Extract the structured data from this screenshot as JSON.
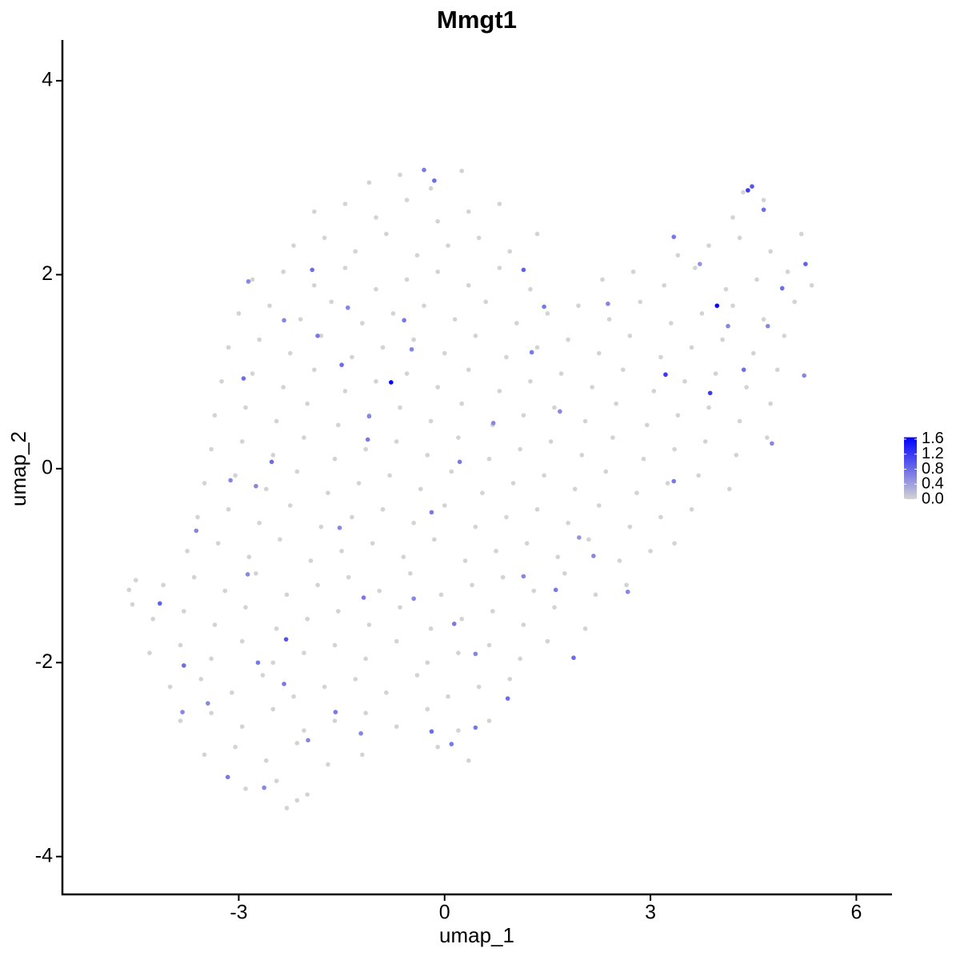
{
  "chart_data": {
    "type": "scatter",
    "title": "Mmgt1",
    "x_label": "umap_1",
    "y_label": "umap_2",
    "xlim": [
      -5.57,
      6.52
    ],
    "ylim": [
      -4.39,
      4.42
    ],
    "xticks": [
      -3,
      0,
      3,
      6
    ],
    "yticks": [
      -4,
      -2,
      0,
      2,
      4
    ],
    "grid": false,
    "color_low": "#d3d3d3",
    "color_high": "#0000ff",
    "clim": [
      0,
      1.65
    ],
    "cticks": [
      {
        "value": 0,
        "label": "0.0"
      },
      0.4,
      0.8,
      1.2,
      1.6
    ],
    "x": [
      -1.1,
      -0.65,
      -0.2,
      0.25,
      4.35,
      -1.9,
      -1.45,
      -1.0,
      -0.55,
      -0.1,
      0.35,
      0.8,
      4.2,
      4.65,
      -2.2,
      -1.75,
      -1.3,
      -0.85,
      -0.4,
      0.05,
      0.5,
      0.95,
      1.35,
      3.4,
      3.85,
      4.3,
      4.75,
      5.2,
      -2.8,
      -2.35,
      -1.9,
      -1.45,
      -1.0,
      -0.55,
      -0.1,
      0.35,
      0.8,
      1.25,
      2.3,
      2.75,
      3.2,
      3.65,
      4.1,
      4.55,
      5.0,
      5.35,
      -3.0,
      -2.55,
      -2.1,
      -1.65,
      -1.2,
      -0.75,
      -0.3,
      0.15,
      0.6,
      1.05,
      1.5,
      1.95,
      2.4,
      2.85,
      3.3,
      3.75,
      4.2,
      4.65,
      5.1,
      -3.15,
      -2.7,
      -2.25,
      -1.8,
      -1.35,
      -0.9,
      -0.45,
      0,
      0.45,
      0.9,
      1.35,
      1.8,
      2.25,
      2.7,
      3.15,
      3.6,
      4.05,
      4.5,
      4.95,
      -3.25,
      -2.8,
      -2.35,
      -1.9,
      -1.45,
      -1.0,
      -0.55,
      -0.1,
      0.35,
      0.8,
      1.25,
      1.7,
      2.15,
      2.6,
      3.05,
      3.5,
      3.95,
      4.4,
      4.85,
      -3.35,
      -2.9,
      -2.45,
      -2.0,
      -1.55,
      -1.1,
      -0.65,
      -0.2,
      0.25,
      0.7,
      1.15,
      1.6,
      2.05,
      2.5,
      2.95,
      3.4,
      3.85,
      4.3,
      4.75,
      -3.4,
      -2.95,
      -2.5,
      -2.05,
      -1.6,
      -1.15,
      -0.7,
      -0.25,
      0.2,
      0.65,
      1.1,
      1.55,
      2.0,
      2.45,
      2.9,
      3.35,
      3.8,
      4.25,
      4.7,
      -3.5,
      -3.05,
      -2.6,
      -2.15,
      -1.7,
      -1.25,
      -0.8,
      -0.35,
      0.1,
      0.55,
      1.0,
      1.45,
      1.9,
      2.35,
      2.8,
      3.25,
      3.7,
      4.15,
      -3.6,
      -3.15,
      -2.7,
      -2.25,
      -1.8,
      -1.35,
      -0.9,
      -0.45,
      0,
      0.45,
      0.9,
      1.35,
      1.8,
      2.25,
      2.7,
      3.15,
      3.6,
      -3.75,
      -3.3,
      -2.85,
      -2.4,
      -1.95,
      -1.5,
      -1.05,
      -0.6,
      -0.15,
      0.3,
      0.75,
      1.2,
      1.65,
      2.1,
      2.55,
      3.0,
      3.35,
      -4.1,
      -3.65,
      -3.2,
      -2.75,
      -2.3,
      -1.85,
      -1.4,
      -0.95,
      -0.5,
      -0.05,
      0.4,
      0.85,
      1.3,
      1.75,
      2.2,
      2.65,
      -4.25,
      -3.8,
      -3.35,
      -2.9,
      -2.45,
      -2.0,
      -1.55,
      -1.1,
      -0.65,
      -0.2,
      0.25,
      0.7,
      1.15,
      1.6,
      2.05,
      -4.3,
      -3.85,
      -3.4,
      -2.95,
      -2.5,
      -2.05,
      -1.6,
      -1.15,
      -0.7,
      -0.25,
      0.2,
      0.65,
      1.1,
      1.5,
      -4.0,
      -3.55,
      -3.1,
      -2.65,
      -2.2,
      -1.75,
      -1.3,
      -0.85,
      -0.4,
      0.05,
      0.5,
      0.95,
      -3.85,
      -3.4,
      -2.95,
      -2.5,
      -2.05,
      -1.6,
      -1.15,
      -0.7,
      -0.25,
      0.2,
      0.65,
      -3.5,
      -3.05,
      -2.6,
      -2.15,
      -1.7,
      -1.2,
      -0.1,
      0.35,
      -2.9,
      -2.45,
      -2.0,
      -2.3,
      -2.15,
      -4.6,
      -4.55,
      -4.5,
      1.96,
      3.72,
      4.13,
      4.71,
      1.15,
      0.45,
      0.14,
      -1.53,
      -3.12,
      -2.75,
      -2.86,
      -2.34,
      -1.85,
      -1.1,
      -0.48,
      -0.59,
      -1.41,
      -1.5,
      -3.82,
      -3.45,
      -2.72,
      -2.34,
      -1.99,
      -1.22,
      -1.59,
      -1.18,
      -0.45,
      -0.19,
      0.71,
      1.68,
      1.27,
      1.45,
      2.38,
      3.34,
      4.65,
      4.92,
      5.26,
      5.24,
      4.77,
      3.34,
      2.67,
      2.17,
      1.62,
      1.88,
      0.92,
      0.45,
      0.1,
      -0.19,
      -2.63,
      -3.16,
      -3.8,
      -2.87,
      -3.62,
      -2.52,
      0.22,
      -1.12,
      -2.93,
      -1.93,
      -0.15,
      -0.3,
      4.36,
      1.15,
      -4.15,
      -2.31,
      4.48,
      4.42,
      3.22,
      3.87,
      3.97,
      -0.78
    ],
    "y": [
      2.95,
      3.03,
      2.89,
      3.07,
      2.85,
      2.65,
      2.73,
      2.59,
      2.77,
      2.55,
      2.65,
      2.73,
      2.59,
      2.77,
      2.3,
      2.38,
      2.24,
      2.42,
      2.2,
      2.3,
      2.38,
      2.24,
      2.42,
      2.2,
      2.3,
      2.38,
      2.24,
      2.42,
      1.95,
      2.03,
      1.89,
      2.07,
      1.85,
      1.95,
      2.03,
      1.89,
      2.07,
      1.85,
      1.95,
      2.03,
      1.89,
      2.07,
      1.85,
      1.95,
      2.03,
      1.89,
      1.6,
      1.68,
      1.54,
      1.72,
      1.5,
      1.6,
      1.68,
      1.54,
      1.72,
      1.5,
      1.6,
      1.68,
      1.54,
      1.72,
      1.5,
      1.6,
      1.68,
      1.54,
      1.72,
      1.25,
      1.33,
      1.19,
      1.37,
      1.15,
      1.25,
      1.33,
      1.19,
      1.37,
      1.15,
      1.25,
      1.33,
      1.19,
      1.37,
      1.15,
      1.25,
      1.33,
      1.19,
      1.37,
      0.9,
      0.98,
      0.84,
      1.02,
      0.8,
      0.9,
      0.98,
      0.84,
      1.02,
      0.8,
      0.9,
      0.98,
      0.84,
      1.02,
      0.8,
      0.9,
      0.98,
      0.84,
      1.02,
      0.55,
      0.63,
      0.49,
      0.67,
      0.45,
      0.55,
      0.63,
      0.49,
      0.67,
      0.45,
      0.55,
      0.63,
      0.49,
      0.67,
      0.45,
      0.55,
      0.63,
      0.49,
      0.67,
      0.2,
      0.28,
      0.14,
      0.32,
      0.1,
      0.2,
      0.28,
      0.14,
      0.32,
      0.1,
      0.2,
      0.28,
      0.14,
      0.32,
      0.1,
      0.2,
      0.28,
      0.14,
      0.32,
      -0.15,
      -0.07,
      -0.21,
      -0.03,
      -0.25,
      -0.15,
      -0.07,
      -0.21,
      -0.03,
      -0.25,
      -0.15,
      -0.07,
      -0.21,
      -0.03,
      -0.25,
      -0.15,
      -0.07,
      -0.21,
      -0.5,
      -0.42,
      -0.56,
      -0.38,
      -0.6,
      -0.5,
      -0.42,
      -0.56,
      -0.38,
      -0.6,
      -0.5,
      -0.42,
      -0.56,
      -0.38,
      -0.6,
      -0.5,
      -0.42,
      -0.85,
      -0.77,
      -0.91,
      -0.73,
      -0.95,
      -0.85,
      -0.77,
      -0.91,
      -0.73,
      -0.95,
      -0.85,
      -0.77,
      -0.91,
      -0.73,
      -0.95,
      -0.85,
      -0.77,
      -1.2,
      -1.12,
      -1.26,
      -1.08,
      -1.3,
      -1.2,
      -1.12,
      -1.26,
      -1.08,
      -1.3,
      -1.2,
      -1.12,
      -1.26,
      -1.08,
      -1.3,
      -1.2,
      -1.55,
      -1.47,
      -1.61,
      -1.43,
      -1.65,
      -1.55,
      -1.47,
      -1.61,
      -1.43,
      -1.65,
      -1.55,
      -1.47,
      -1.61,
      -1.43,
      -1.65,
      -1.9,
      -1.82,
      -1.96,
      -1.78,
      -2.0,
      -1.9,
      -1.82,
      -1.96,
      -1.78,
      -2.0,
      -1.9,
      -1.82,
      -1.96,
      -1.78,
      -2.25,
      -2.17,
      -2.31,
      -2.13,
      -2.35,
      -2.25,
      -2.17,
      -2.31,
      -2.13,
      -2.35,
      -2.25,
      -2.17,
      -2.6,
      -2.52,
      -2.66,
      -2.48,
      -2.7,
      -2.6,
      -2.52,
      -2.66,
      -2.48,
      -2.7,
      -2.6,
      -2.95,
      -2.87,
      -3.01,
      -2.83,
      -3.05,
      -2.95,
      -2.87,
      -3.01,
      -3.3,
      -3.22,
      -3.36,
      -3.5,
      -3.42,
      -1.25,
      -1.4,
      -1.15,
      -0.71,
      2.11,
      1.47,
      1.47,
      -1.11,
      -1.91,
      -1.6,
      -0.61,
      -0.12,
      -0.18,
      1.93,
      1.53,
      1.37,
      0.54,
      1.23,
      1.53,
      1.66,
      1.07,
      -2.51,
      -2.42,
      -2.0,
      -2.22,
      -2.8,
      -2.73,
      -2.51,
      -1.33,
      -1.34,
      -0.45,
      0.47,
      0.59,
      1.2,
      1.67,
      1.7,
      2.39,
      2.67,
      1.86,
      2.11,
      0.96,
      0.26,
      -0.13,
      -1.27,
      -0.9,
      -1.25,
      -1.95,
      -2.37,
      -2.67,
      -2.84,
      -2.71,
      -3.29,
      -3.18,
      -2.03,
      -1.09,
      -0.64,
      0.07,
      0.07,
      0.3,
      0.93,
      2.05,
      2.97,
      3.08,
      1.02,
      2.05,
      -1.39,
      -1.76,
      2.91,
      2.87,
      0.97,
      0.78,
      1.68,
      0.89
    ],
    "values": [
      0,
      0,
      0,
      0,
      0,
      0,
      0,
      0,
      0,
      0,
      0,
      0,
      0,
      0,
      0,
      0,
      0,
      0,
      0,
      0,
      0,
      0,
      0,
      0,
      0,
      0,
      0,
      0,
      0,
      0,
      0,
      0,
      0,
      0,
      0,
      0,
      0,
      0,
      0,
      0,
      0,
      0,
      0,
      0,
      0,
      0,
      0,
      0,
      0,
      0,
      0,
      0,
      0,
      0,
      0,
      0,
      0,
      0,
      0,
      0,
      0,
      0,
      0,
      0,
      0,
      0,
      0,
      0,
      0,
      0,
      0,
      0,
      0,
      0,
      0,
      0,
      0,
      0,
      0,
      0,
      0,
      0,
      0,
      0,
      0,
      0,
      0,
      0,
      0,
      0,
      0,
      0,
      0,
      0,
      0,
      0,
      0,
      0,
      0,
      0,
      0,
      0,
      0,
      0,
      0,
      0,
      0,
      0,
      0,
      0,
      0,
      0,
      0,
      0,
      0,
      0,
      0,
      0,
      0,
      0,
      0,
      0,
      0,
      0,
      0,
      0,
      0,
      0,
      0,
      0,
      0,
      0,
      0,
      0,
      0,
      0,
      0,
      0,
      0,
      0,
      0,
      0,
      0,
      0,
      0,
      0,
      0,
      0,
      0,
      0,
      0,
      0,
      0,
      0,
      0,
      0,
      0,
      0,
      0,
      0,
      0,
      0,
      0,
      0,
      0,
      0,
      0,
      0,
      0,
      0,
      0,
      0,
      0,
      0,
      0,
      0,
      0,
      0,
      0,
      0,
      0,
      0,
      0,
      0,
      0,
      0,
      0,
      0,
      0,
      0,
      0,
      0,
      0,
      0,
      0,
      0,
      0,
      0,
      0,
      0,
      0,
      0,
      0,
      0,
      0,
      0,
      0,
      0,
      0,
      0,
      0,
      0,
      0,
      0,
      0,
      0,
      0,
      0,
      0,
      0,
      0,
      0,
      0,
      0,
      0,
      0,
      0,
      0,
      0,
      0,
      0,
      0,
      0,
      0,
      0,
      0,
      0,
      0,
      0,
      0,
      0,
      0,
      0,
      0,
      0,
      0,
      0,
      0,
      0,
      0,
      0,
      0,
      0,
      0,
      0,
      0,
      0,
      0,
      0,
      0,
      0,
      0,
      0,
      0,
      0,
      0,
      0,
      0,
      0,
      0,
      0,
      0,
      0,
      0,
      0,
      0,
      0,
      0.5,
      0.5,
      0.6,
      0.6,
      0.6,
      0.6,
      0.7,
      0.6,
      0.6,
      0.6,
      0.6,
      0.6,
      0.7,
      0.6,
      0.6,
      0.7,
      0.6,
      0.8,
      0.6,
      0.6,
      0.7,
      0.7,
      0.6,
      0.6,
      0.7,
      0.7,
      0.6,
      0.7,
      0.6,
      0.6,
      0.7,
      0.7,
      0.6,
      0.7,
      0.8,
      0.8,
      0.9,
      0.6,
      0.6,
      0.7,
      0.6,
      0.6,
      0.7,
      0.8,
      0.8,
      0.7,
      0.7,
      0.8,
      0.6,
      0.7,
      0.8,
      0.6,
      0.6,
      0.8,
      0.7,
      0.7,
      0.8,
      0.8,
      0.8,
      0.7,
      0.8,
      0.9,
      0.9,
      1.0,
      1.0,
      1.2,
      1.2,
      1.2,
      1.6,
      1.6
    ]
  }
}
